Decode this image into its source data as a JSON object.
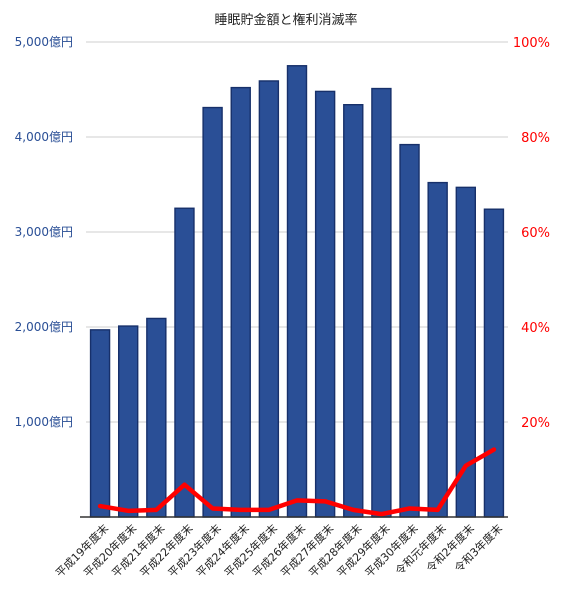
{
  "chart_data": {
    "type": "bar",
    "title": "睡眠貯金額と権利消滅率",
    "categories": [
      "平成19年度末",
      "平成20年度末",
      "平成21年度末",
      "平成22年度末",
      "平成23年度末",
      "平成24年度末",
      "平成25年度末",
      "平成26年度末",
      "平成27年度末",
      "平成28年度末",
      "平成29年度末",
      "平成30年度末",
      "令和元年度末",
      "令和2年度末",
      "令和3年度末"
    ],
    "series": [
      {
        "axis": "left",
        "type": "bar",
        "color": "#2a4f96",
        "values": [
          1970,
          2010,
          2090,
          3250,
          4310,
          4520,
          4590,
          4750,
          4480,
          4340,
          4510,
          3920,
          3520,
          3470,
          3240
        ]
      },
      {
        "axis": "right",
        "type": "line",
        "color": "#ff0000",
        "values": [
          2.3,
          1.3,
          1.5,
          6.8,
          1.8,
          1.5,
          1.5,
          3.5,
          3.3,
          1.5,
          0.6,
          1.8,
          1.5,
          10.8,
          14.2
        ]
      }
    ],
    "y_left": {
      "min": 0,
      "max": 5000,
      "ticks": [
        1000,
        2000,
        3000,
        4000,
        5000
      ],
      "tick_labels": [
        "1,000億円",
        "2,000億円",
        "3,000億円",
        "4,000億円",
        "5,000億円"
      ],
      "color": "#2a4f96"
    },
    "y_right": {
      "min": 0,
      "max": 100,
      "ticks": [
        20,
        40,
        60,
        80,
        100
      ],
      "tick_labels": [
        "20%",
        "40%",
        "60%",
        "80%",
        "100%"
      ],
      "color": "#ff0000"
    },
    "grid": true,
    "legend": "none"
  }
}
